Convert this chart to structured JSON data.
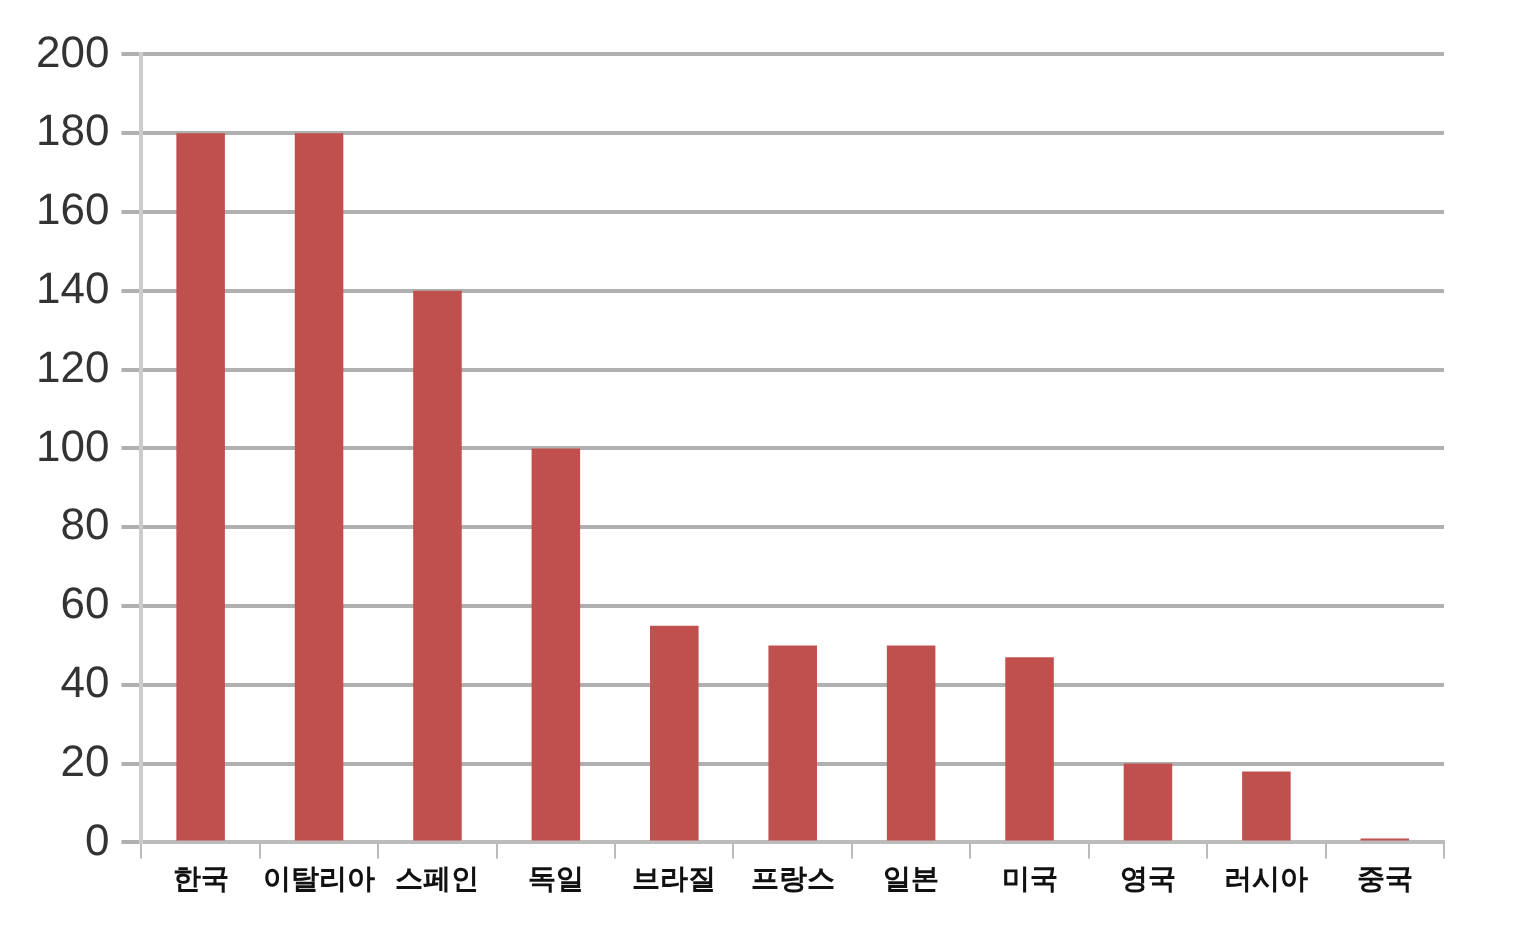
{
  "chart_data": {
    "type": "bar",
    "categories": [
      "한국",
      "이탈리아",
      "스페인",
      "독일",
      "브라질",
      "프랑스",
      "일본",
      "미국",
      "영국",
      "러시아",
      "중국"
    ],
    "values": [
      180,
      180,
      140,
      100,
      55,
      50,
      50,
      47,
      20,
      18,
      1
    ],
    "color": "#c0504d",
    "ylim": [
      0,
      200
    ],
    "yticks": [
      0,
      20,
      40,
      60,
      80,
      100,
      120,
      140,
      160,
      180,
      200
    ],
    "grid": "y",
    "legend": false
  }
}
